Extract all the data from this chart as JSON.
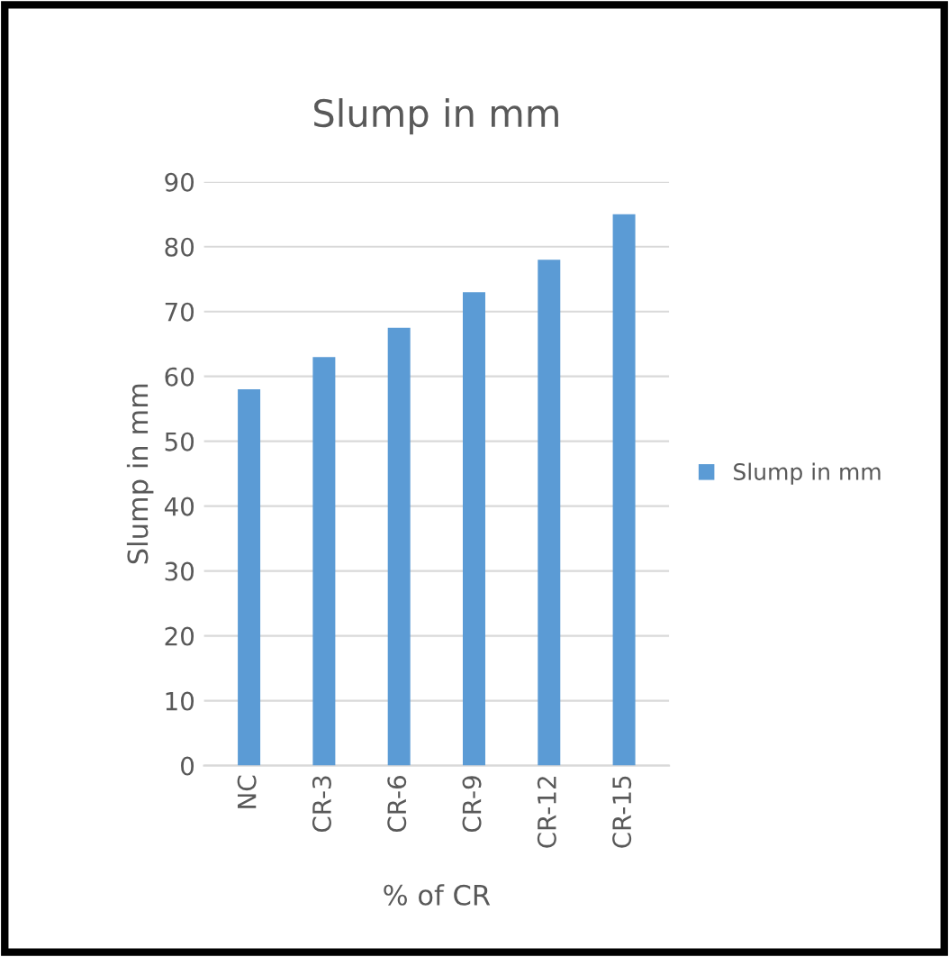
{
  "chart_data": {
    "type": "bar",
    "title": "Slump in mm",
    "xlabel": "% of CR",
    "ylabel": "Slump in mm",
    "categories": [
      "NC",
      "CR-3",
      "CR-6",
      "CR-9",
      "CR-12",
      "CR-15"
    ],
    "series": [
      {
        "name": "Slump in mm",
        "color": "#5b9bd5",
        "values": [
          58,
          63,
          67.5,
          73,
          78,
          85
        ]
      }
    ],
    "ylim": [
      0,
      90
    ],
    "yticks": [
      0,
      10,
      20,
      30,
      40,
      50,
      60,
      70,
      80,
      90
    ],
    "grid": "y",
    "legend": "right"
  }
}
